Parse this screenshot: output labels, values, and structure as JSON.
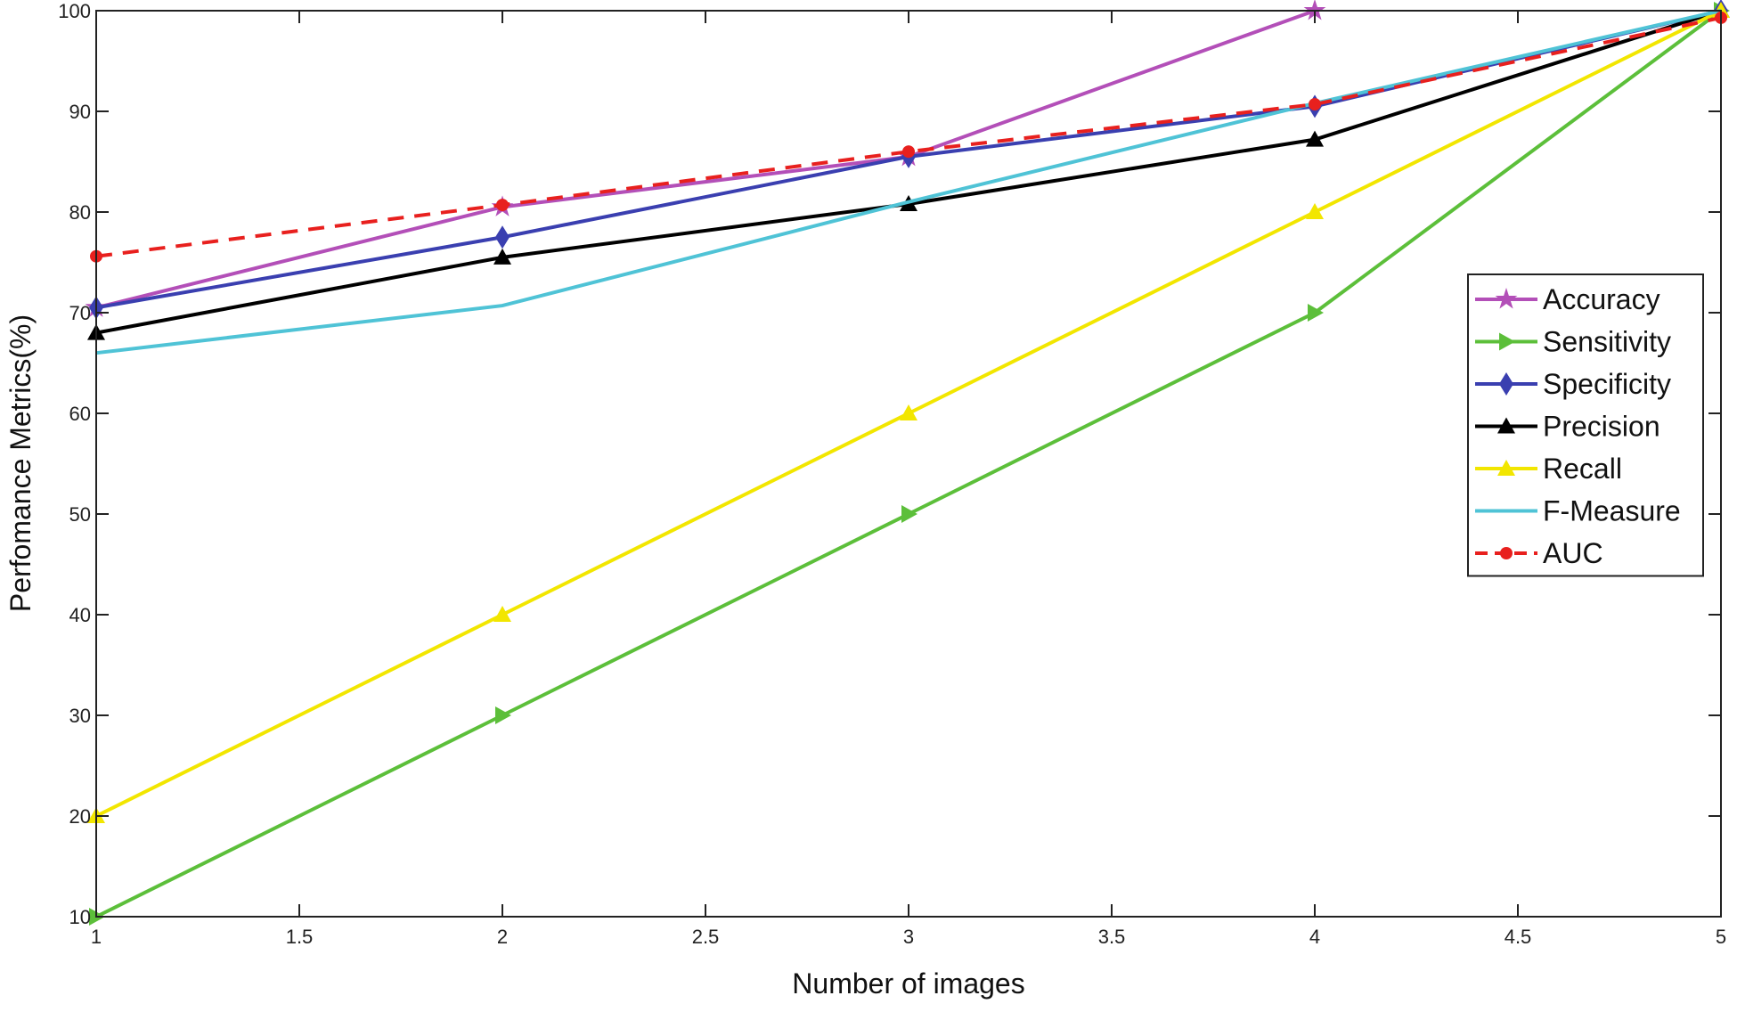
{
  "chart_data": {
    "type": "line",
    "title": "",
    "xlabel": "Number of images",
    "ylabel": "Perfomance Metrics(%)",
    "xlim": [
      1,
      5
    ],
    "ylim": [
      10,
      100
    ],
    "xticks": [
      "1",
      "1.5",
      "2",
      "2.5",
      "3",
      "3.5",
      "4",
      "4.5",
      "5"
    ],
    "yticks": [
      "10",
      "20",
      "30",
      "40",
      "50",
      "60",
      "70",
      "80",
      "90",
      "100"
    ],
    "grid": false,
    "legend_placement": "right",
    "series": [
      {
        "name": "Accuracy",
        "color": "#b34fb8",
        "marker": "star",
        "dash": false,
        "x": [
          1,
          2,
          3,
          4
        ],
        "values": [
          70.5,
          80.5,
          85.5,
          100
        ]
      },
      {
        "name": "Sensitivity",
        "color": "#5cbf3a",
        "marker": "triangle-right",
        "dash": false,
        "x": [
          1,
          2,
          3,
          4,
          5
        ],
        "values": [
          10,
          30,
          50,
          70,
          100
        ]
      },
      {
        "name": "Specificity",
        "color": "#3a3fb0",
        "marker": "diamond",
        "dash": false,
        "x": [
          1,
          2,
          3,
          4,
          5
        ],
        "values": [
          70.5,
          77.5,
          85.5,
          90.5,
          100
        ]
      },
      {
        "name": "Precision",
        "color": "#000000",
        "marker": "triangle-up",
        "dash": false,
        "x": [
          1,
          2,
          3,
          4,
          5
        ],
        "values": [
          68,
          75.5,
          80.8,
          87.2,
          100
        ]
      },
      {
        "name": "Recall",
        "color": "#f2e600",
        "marker": "triangle-up",
        "dash": false,
        "x": [
          1,
          2,
          3,
          4,
          5
        ],
        "values": [
          20,
          40,
          60,
          80,
          100
        ]
      },
      {
        "name": "F-Measure",
        "color": "#4fc3d6",
        "marker": "none",
        "dash": false,
        "x": [
          1,
          2,
          3,
          4,
          5
        ],
        "values": [
          66,
          70.7,
          81,
          90.8,
          100
        ]
      },
      {
        "name": "AUC",
        "color": "#e8201e",
        "marker": "circle",
        "dash": true,
        "x": [
          1,
          2,
          3,
          4,
          5
        ],
        "values": [
          75.6,
          80.7,
          86,
          90.7,
          99.3
        ]
      }
    ]
  }
}
